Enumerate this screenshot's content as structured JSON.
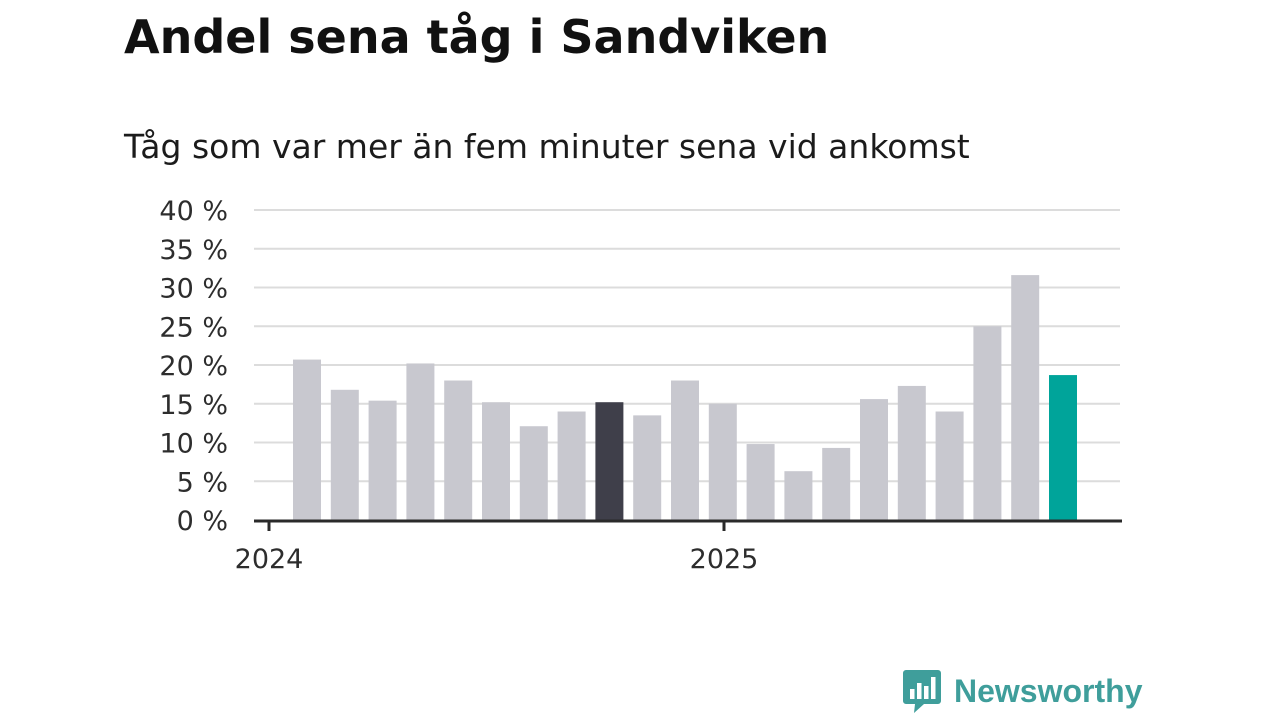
{
  "title": "Andel sena tåg i Sandviken",
  "subtitle": "Tåg som var mer än fem minuter sena vid ankomst",
  "brand": {
    "name": "Newsworthy",
    "color": "#3f9e9b"
  },
  "colors": {
    "bar": "#c8c8cf",
    "highlight_dark": "#3f3f4a",
    "highlight_latest": "#00a49a",
    "grid": "#dcdcdc",
    "axis": "#2a2a2a"
  },
  "chart_data": {
    "type": "bar",
    "title": "Andel sena tåg i Sandviken",
    "subtitle": "Tåg som var mer än fem minuter sena vid ankomst",
    "xlabel": "",
    "ylabel": "",
    "ylim": [
      0,
      40
    ],
    "yticks": [
      0,
      5,
      10,
      15,
      20,
      25,
      30,
      35,
      40
    ],
    "ytick_labels": [
      "0 %",
      "5 %",
      "10 %",
      "15 %",
      "20 %",
      "25 %",
      "30 %",
      "35 %",
      "40 %"
    ],
    "xtick_labels": [
      "2024",
      "2025"
    ],
    "xtick_positions": [
      0,
      12
    ],
    "grid": true,
    "values": [
      20.7,
      16.8,
      15.4,
      20.2,
      18.0,
      15.2,
      12.1,
      14.0,
      15.2,
      13.5,
      18.0,
      15.0,
      9.8,
      6.3,
      9.3,
      15.6,
      17.3,
      14.0,
      25.0,
      31.6,
      18.7
    ],
    "highlight": {
      "dark_index": 8,
      "latest_index": 20
    }
  }
}
